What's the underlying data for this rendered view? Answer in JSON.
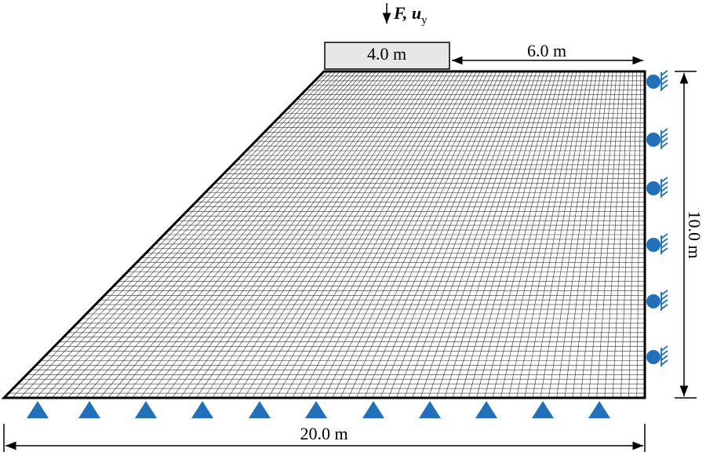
{
  "load_label": {
    "main": "F, u",
    "subscript": "y"
  },
  "dimensions": {
    "load_width": "4.0 m",
    "top_remaining": "6.0 m",
    "height": "10.0 m",
    "base": "20.0 m"
  }
}
